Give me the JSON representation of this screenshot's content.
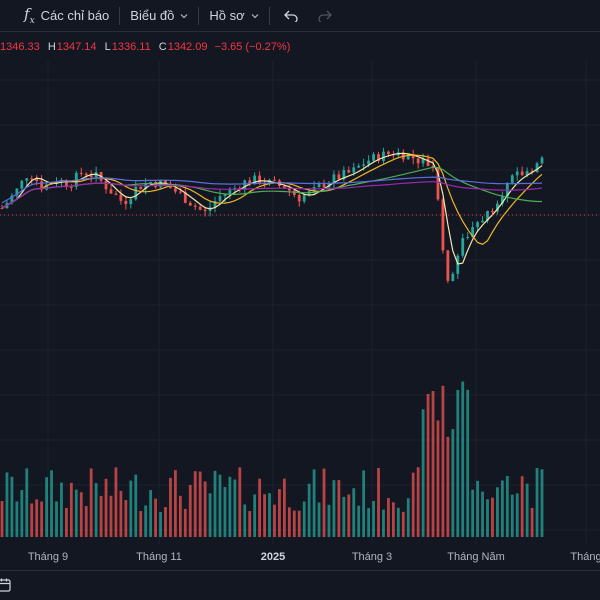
{
  "toolbar": {
    "indicators_label": "Các chỉ báo",
    "chart_label": "Biểu đồ",
    "profile_label": "Hồ sơ",
    "undo_icon": "undo-icon",
    "redo_icon": "redo-icon",
    "indicators_icon": "fx-icon"
  },
  "ohlc": {
    "open": "1346.33",
    "high_label": "H",
    "high": "1347.14",
    "low_label": "L",
    "low": "1336.11",
    "close_label": "C",
    "close": "1342.09",
    "change": "−3.65 (−0.27%)"
  },
  "colors": {
    "up": "#26a69a",
    "down": "#ef5350",
    "ma_fast": "#f5e9a8",
    "ma_mid": "#f0b429",
    "ma_slow": "#4caf50",
    "ma_long": "#9c27b0",
    "ma_long2": "#5b6ee1",
    "price_line": "#f23645"
  },
  "xaxis": {
    "labels": [
      "Tháng 9",
      "Tháng 11",
      "2025",
      "Tháng 3",
      "Tháng Năm",
      "Tháng"
    ]
  },
  "chart_data": {
    "type": "candlestick",
    "title": "",
    "series_approx_close": [
      1295,
      1310,
      1330,
      1315,
      1322,
      1318,
      1330,
      1325,
      1312,
      1300,
      1315,
      1320,
      1318,
      1310,
      1300,
      1290,
      1305,
      1312,
      1320,
      1322,
      1318,
      1315,
      1305,
      1310,
      1320,
      1325,
      1330,
      1340,
      1345,
      1348,
      1346,
      1340,
      1335,
      1220,
      1260,
      1280,
      1290,
      1310,
      1325,
      1330,
      1342
    ]
  }
}
